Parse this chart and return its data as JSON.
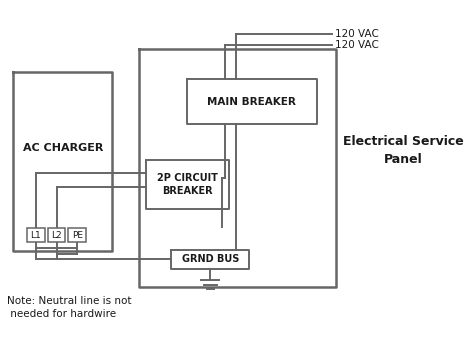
{
  "bg_color": "#ffffff",
  "line_color": "#666666",
  "box_color": "#666666",
  "text_color": "#1a1a1a",
  "title": "Electrical Service\nPanel",
  "note": "Note: Neutral line is not\n needed for hardwire",
  "label_120vac_1": "120 VAC",
  "label_120vac_2": "120 VAC",
  "label_ac_charger": "AC CHARGER",
  "label_main_breaker": "MAIN BREAKER",
  "label_2p_circuit": "2P CIRCUIT\nBREAKER",
  "label_grnd_bus": "GRND BUS",
  "label_l1": "L1",
  "label_l2": "L2",
  "label_pe": "PE",
  "figsize": [
    4.74,
    3.52
  ],
  "dpi": 100
}
